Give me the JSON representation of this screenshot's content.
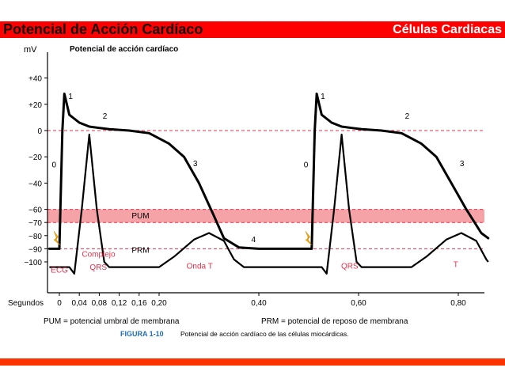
{
  "header": {
    "title": "Potencial de Acción Cardíaco",
    "section": "Células Cardiacas"
  },
  "colors": {
    "bar": "#ff0000",
    "footer": "#ff3300",
    "curve": "#000000",
    "guide": "#e8304a",
    "band": "#f6a3a8",
    "ecg_label": "#e8304a",
    "figure_label": "#1f6fb4"
  },
  "chart_data": {
    "type": "line",
    "title": "Potencial de acción cardíaco",
    "y_unit": "mV",
    "x_label": "Segundos",
    "ylim": [
      -110,
      50
    ],
    "xlim": [
      -0.02,
      0.86
    ],
    "y_ticks": [
      {
        "value": 40,
        "label": "+40"
      },
      {
        "value": 20,
        "label": "+20"
      },
      {
        "value": 0,
        "label": "0"
      },
      {
        "value": -20,
        "label": "−20"
      },
      {
        "value": -40,
        "label": "−40"
      },
      {
        "value": -60,
        "label": "−60"
      },
      {
        "value": -70,
        "label": "−70"
      },
      {
        "value": -80,
        "label": "−80"
      },
      {
        "value": -90,
        "label": "−90"
      },
      {
        "value": -100,
        "label": "−100"
      }
    ],
    "x_ticks": [
      {
        "value": 0,
        "label": "0"
      },
      {
        "value": 0.04,
        "label": "0,04"
      },
      {
        "value": 0.08,
        "label": "0,08"
      },
      {
        "value": 0.12,
        "label": "0,12"
      },
      {
        "value": 0.16,
        "label": "0,16"
      },
      {
        "value": 0.2,
        "label": "0,20"
      },
      {
        "value": 0.4,
        "label": "0,40"
      },
      {
        "value": 0.6,
        "label": "0,60"
      },
      {
        "value": 0.8,
        "label": "0,80"
      }
    ],
    "threshold_band": {
      "from": -70,
      "to": -60,
      "label": "PUM"
    },
    "guide_lines": [
      0,
      -90
    ],
    "prm_label": "PRM",
    "action_potential": {
      "x": [
        -0.02,
        0.0,
        0.006,
        0.01,
        0.02,
        0.04,
        0.06,
        0.08,
        0.1,
        0.14,
        0.18,
        0.22,
        0.25,
        0.28,
        0.31,
        0.33,
        0.36,
        0.4,
        0.44,
        0.48,
        0.506,
        0.512,
        0.516,
        0.526,
        0.546,
        0.566,
        0.586,
        0.606,
        0.646,
        0.686,
        0.726,
        0.756,
        0.786,
        0.816,
        0.846,
        0.86
      ],
      "y": [
        -90,
        -90,
        0,
        28,
        12,
        6,
        3,
        2,
        1,
        0,
        -2,
        -10,
        -20,
        -40,
        -65,
        -82,
        -89,
        -90,
        -90,
        -90,
        -90,
        0,
        28,
        12,
        6,
        3,
        2,
        1,
        0,
        -2,
        -10,
        -20,
        -40,
        -60,
        -78,
        -82
      ]
    },
    "ecg": {
      "x": [
        -0.02,
        0.0,
        0.02,
        0.03,
        0.045,
        0.06,
        0.075,
        0.09,
        0.1,
        0.12,
        0.2,
        0.23,
        0.27,
        0.3,
        0.33,
        0.35,
        0.37,
        0.4,
        0.48,
        0.506,
        0.526,
        0.536,
        0.551,
        0.566,
        0.581,
        0.596,
        0.606,
        0.626,
        0.706,
        0.736,
        0.776,
        0.806,
        0.836,
        0.856,
        0.86
      ],
      "y": [
        -104,
        -104,
        -104,
        -109,
        -60,
        -3,
        -60,
        -100,
        -104,
        -104,
        -104,
        -96,
        -83,
        -78,
        -84,
        -98,
        -104,
        -104,
        -104,
        -104,
        -104,
        -109,
        -60,
        -3,
        -60,
        -100,
        -104,
        -104,
        -104,
        -96,
        -83,
        -78,
        -84,
        -98,
        -100
      ]
    },
    "phase_labels": [
      {
        "label": "0",
        "x": -0.015,
        "y": -28
      },
      {
        "label": "1",
        "x": 0.018,
        "y": 24
      },
      {
        "label": "2",
        "x": 0.087,
        "y": 9
      },
      {
        "label": "3",
        "x": 0.268,
        "y": -27
      },
      {
        "label": "4",
        "x": 0.385,
        "y": -85
      },
      {
        "label": "0",
        "x": 0.49,
        "y": -28
      },
      {
        "label": "1",
        "x": 0.524,
        "y": 24
      },
      {
        "label": "2",
        "x": 0.693,
        "y": 9
      },
      {
        "label": "3",
        "x": 0.803,
        "y": -27
      }
    ],
    "ecg_annotations": [
      {
        "label": "ECG",
        "x": -0.017,
        "y": -108
      },
      {
        "label": "Complejo",
        "x": 0.045,
        "y": -96
      },
      {
        "label": "QRS",
        "x": 0.061,
        "y": -106
      },
      {
        "label": "Onda T",
        "x": 0.255,
        "y": -105
      },
      {
        "label": "QRS",
        "x": 0.565,
        "y": -105
      },
      {
        "label": "T",
        "x": 0.79,
        "y": -104
      }
    ],
    "legend": {
      "pum": "PUM = potencial umbral de membrana",
      "prm": "PRM = potencial de reposo de membrana"
    },
    "figure_label": "FIGURA 1-10",
    "caption": "Potencial de acción cardíaco de las células miocárdicas."
  }
}
